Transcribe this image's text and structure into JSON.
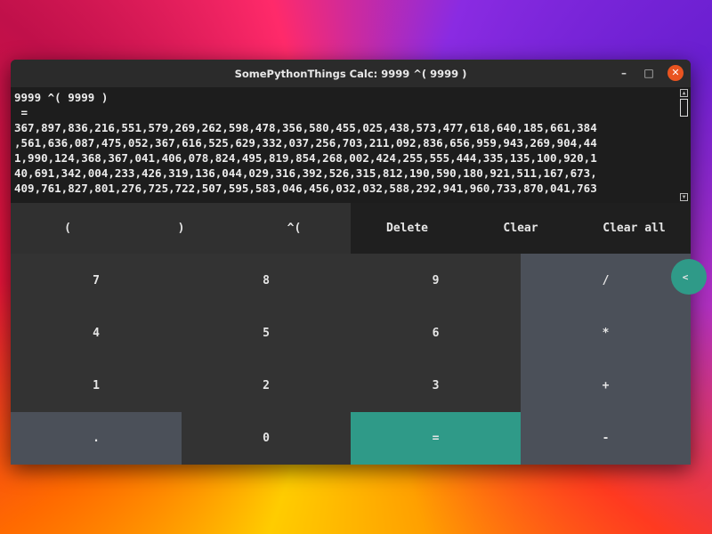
{
  "window": {
    "title": "SomePythonThings Calc:  9999 ^( 9999 )",
    "minimize_icon": "minimize-icon",
    "maximize_icon": "maximize-icon",
    "close_icon": "close-icon",
    "minimize_label": "–",
    "maximize_label": "□",
    "close_label": "✕"
  },
  "output": {
    "lines": [
      "9999 ^( 9999 )",
      " =",
      "367,897,836,216,551,579,269,262,598,478,356,580,455,025,438,573,477,618,640,185,661,384",
      ",561,636,087,475,052,367,616,525,629,332,037,256,703,211,092,836,656,959,943,269,904,44",
      "1,990,124,368,367,041,406,078,824,495,819,854,268,002,424,255,555,444,335,135,100,920,1",
      "40,691,342,004,233,426,319,136,044,029,316,392,526,315,812,190,590,180,921,511,167,673,",
      "409,761,827,801,276,725,722,507,595,583,046,456,032,032,588,292,941,960,733,870,041,763"
    ]
  },
  "top_row": [
    "(",
    ")",
    "^(",
    "Delete",
    "Clear",
    "Clear all"
  ],
  "keypad": [
    [
      "7",
      "8",
      "9",
      "/"
    ],
    [
      "4",
      "5",
      "6",
      "*"
    ],
    [
      "1",
      "2",
      "3",
      "+"
    ],
    [
      ".",
      "0",
      "=",
      "-"
    ]
  ],
  "side_toggle": {
    "label": "<",
    "icon": "chevron-left-icon"
  },
  "colors": {
    "accent": "#2f9a88",
    "operator": "#4b5059",
    "close": "#e95420"
  }
}
